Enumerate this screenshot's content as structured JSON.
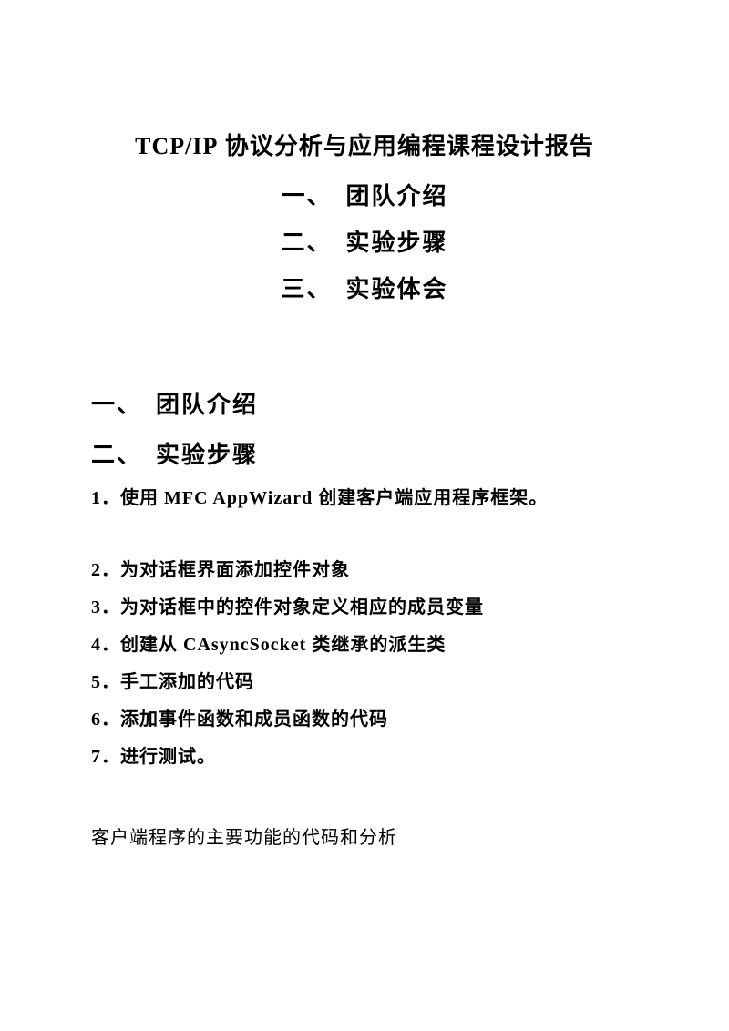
{
  "title_prefix": "TCP/IP",
  "title_suffix": " 协议分析与应用编程课程设计报告",
  "toc": {
    "item1": "一、　团队介绍",
    "item2": "二、　实验步骤",
    "item3": "三、　实验体会"
  },
  "sections": {
    "heading1": "一、　团队介绍",
    "heading2": "二、　实验步骤"
  },
  "steps": {
    "s1_prefix": "1．使用 ",
    "s1_en": "MFC AppWizard",
    "s1_suffix": " 创建客户端应用程序框架。",
    "s2": "2．为对话框界面添加控件对象",
    "s3": "3．为对话框中的控件对象定义相应的成员变量",
    "s4_prefix": "4．创建从 ",
    "s4_en": "CAsyncSocket",
    "s4_suffix": " 类继承的派生类",
    "s5": "5．手工添加的代码",
    "s6": "6．添加事件函数和成员函数的代码",
    "s7": "7．进行测试。"
  },
  "body": {
    "line1": "客户端程序的主要功能的代码和分析"
  }
}
